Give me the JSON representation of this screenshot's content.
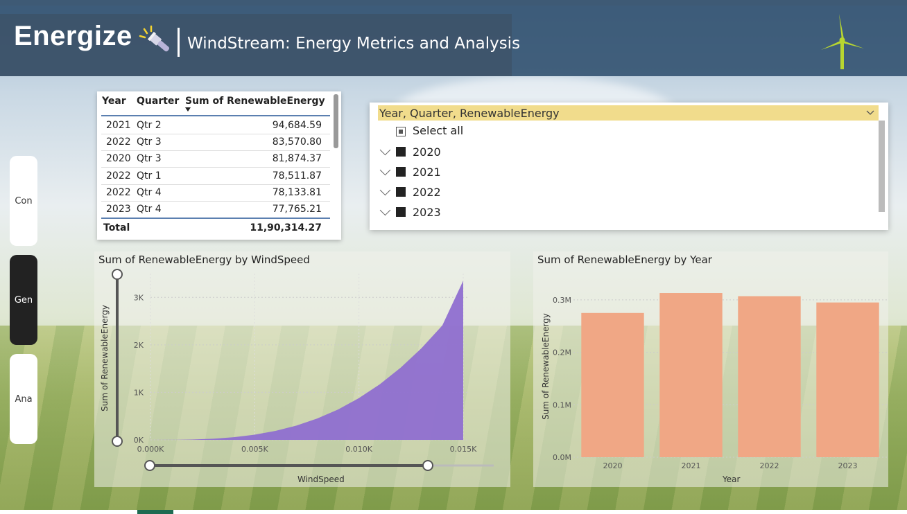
{
  "header": {
    "brand": "Energize",
    "subtitle": "WindStream: Energy Metrics and Analysis"
  },
  "nav": {
    "items": [
      {
        "label": "Con",
        "active": false
      },
      {
        "label": "Gen",
        "active": true
      },
      {
        "label": "Ana",
        "active": false
      }
    ]
  },
  "table": {
    "columns": [
      "Year",
      "Quarter",
      "Sum of RenewableEnergy"
    ],
    "rows": [
      [
        "2021",
        "Qtr 2",
        "94,684.59"
      ],
      [
        "2022",
        "Qtr 3",
        "83,570.80"
      ],
      [
        "2020",
        "Qtr 3",
        "81,874.37"
      ],
      [
        "2022",
        "Qtr 1",
        "78,511.87"
      ],
      [
        "2022",
        "Qtr 4",
        "78,133.81"
      ],
      [
        "2023",
        "Qtr 4",
        "77,765.21"
      ]
    ],
    "total_label": "Total",
    "total_value": "11,90,314.27"
  },
  "slicer": {
    "header": "Year, Quarter, RenewableEnergy",
    "select_all": "Select all",
    "items": [
      "2020",
      "2021",
      "2022",
      "2023"
    ]
  },
  "area_chart": {
    "title": "Sum of RenewableEnergy by WindSpeed",
    "ylabel": "Sum of RenewableEnergy",
    "xlabel": "WindSpeed",
    "yticks": [
      "0K",
      "1K",
      "2K",
      "3K"
    ],
    "xticks": [
      "0.000K",
      "0.005K",
      "0.010K",
      "0.015K"
    ],
    "color": "#8f6fd0"
  },
  "bar_chart": {
    "title": "Sum of RenewableEnergy by Year",
    "ylabel": "Sum of RenewableEnergy",
    "xlabel": "Year",
    "yticks": [
      "0.0M",
      "0.1M",
      "0.2M",
      "0.3M"
    ],
    "color": "#f0a785"
  },
  "chart_data": [
    {
      "type": "area",
      "title": "Sum of RenewableEnergy by WindSpeed",
      "xlabel": "WindSpeed",
      "ylabel": "Sum of RenewableEnergy",
      "xlim": [
        0,
        15.3
      ],
      "ylim": [
        0,
        3500
      ],
      "x": [
        0,
        1,
        2,
        3,
        4,
        5,
        6,
        7,
        8,
        9,
        10,
        11,
        12,
        13,
        14,
        15
      ],
      "values": [
        0,
        1,
        7,
        24,
        56,
        110,
        190,
        300,
        450,
        640,
        880,
        1170,
        1520,
        1930,
        2410,
        3350
      ]
    },
    {
      "type": "bar",
      "title": "Sum of RenewableEnergy by Year",
      "xlabel": "Year",
      "ylabel": "Sum of RenewableEnergy",
      "categories": [
        "2020",
        "2021",
        "2022",
        "2023"
      ],
      "values": [
        275000,
        313000,
        307000,
        295000
      ],
      "ylim": [
        0,
        0.35
      ]
    }
  ]
}
